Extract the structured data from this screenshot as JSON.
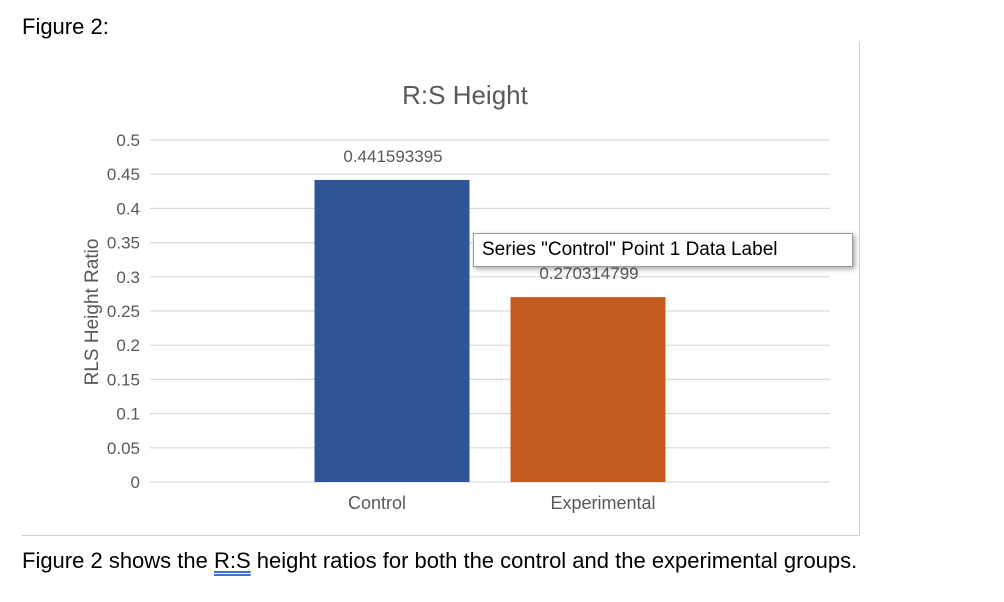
{
  "figure_heading": "Figure 2:",
  "tooltip_text": "Series \"Control\" Point 1 Data Label",
  "caption": {
    "before": "Figure 2 shows the ",
    "underlined": "R:S",
    "after": " height ratios for both the control and the experimental groups."
  },
  "colors": {
    "control": "#2f5597",
    "experimental": "#c55a1f",
    "gridline": "#d9d9d9",
    "axis_text": "#595959",
    "title_text": "#595959"
  },
  "chart_data": {
    "type": "bar",
    "title": "R:S Height",
    "ylabel": "RLS Height Ratio",
    "xlabel": "",
    "categories": [
      "Control",
      "Experimental"
    ],
    "values": [
      0.441593395,
      0.270314799
    ],
    "data_labels": [
      "0.441593395",
      "0.270314799"
    ],
    "ylim": [
      0,
      0.5
    ],
    "yticks": [
      "0",
      "0.05",
      "0.1",
      "0.15",
      "0.2",
      "0.25",
      "0.3",
      "0.35",
      "0.4",
      "0.45",
      "0.5"
    ],
    "grid": true,
    "legend": "none"
  }
}
